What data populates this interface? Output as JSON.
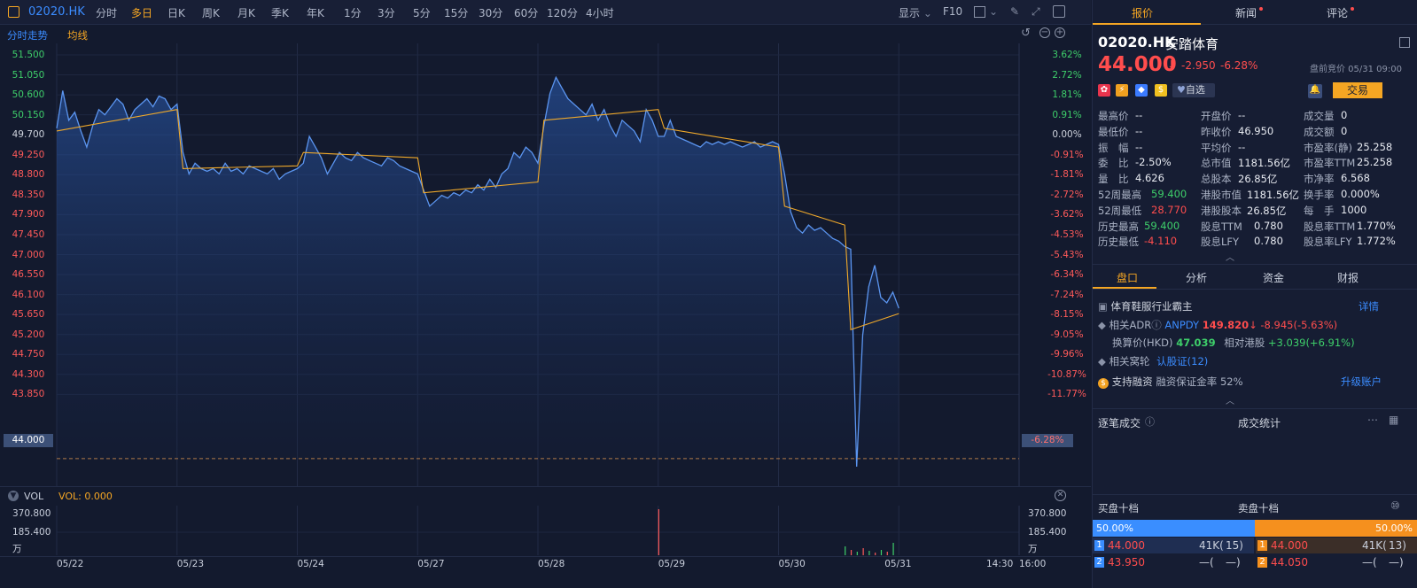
{
  "toolbar": {
    "symbol": "02020.HK",
    "periods": [
      "分时",
      "多日",
      "日K",
      "周K",
      "月K",
      "季K",
      "年K",
      "1分",
      "3分",
      "5分",
      "15分",
      "30分",
      "60分",
      "120分",
      "4小时"
    ],
    "active_period": "多日",
    "display_label": "显示",
    "f10_label": "F10"
  },
  "chart": {
    "tab_label": "分时走势",
    "ma_label": "均线",
    "price_axis": [
      "51.500",
      "51.050",
      "50.600",
      "50.150",
      "49.700",
      "49.250",
      "48.800",
      "48.350",
      "47.900",
      "47.450",
      "47.000",
      "46.550",
      "46.100",
      "45.650",
      "45.200",
      "44.750",
      "44.300",
      "43.850"
    ],
    "pct_axis": [
      "3.62%",
      "2.72%",
      "1.81%",
      "0.91%",
      "0.00%",
      "-0.91%",
      "-1.81%",
      "-2.72%",
      "-3.62%",
      "-4.53%",
      "-5.43%",
      "-6.34%",
      "-7.24%",
      "-8.15%",
      "-9.05%",
      "-9.96%",
      "-10.87%",
      "-11.77%"
    ],
    "current_price_tag": "44.000",
    "current_pct_tag": "-6.28%",
    "dates": [
      "05/22",
      "05/23",
      "05/24",
      "05/27",
      "05/28",
      "05/29",
      "05/30",
      "05/31"
    ],
    "time_labels": [
      "14:30",
      "16:00"
    ],
    "vol_label": "VOL",
    "vol_value": "VOL: 0.000",
    "vol_axis": [
      "370.800",
      "185.400",
      "万"
    ],
    "colors": {
      "price_line": "#5b95f0",
      "avg_line": "#f0a92a",
      "up": "#ff5a5a",
      "down": "#3ecf6a",
      "accent": "#f5a623"
    }
  },
  "chart_data": {
    "type": "line",
    "title": "",
    "ylim": [
      43.85,
      51.5
    ],
    "prev_close": 46.95,
    "series": [
      {
        "name": "",
        "x": [
          0,
          1,
          2,
          3,
          4,
          5,
          6,
          7,
          8,
          9,
          10,
          11,
          12,
          13,
          14,
          15,
          16,
          17,
          18,
          19,
          20,
          21,
          22,
          23,
          24,
          25,
          26,
          27,
          28,
          29,
          30,
          31,
          32,
          33,
          34,
          35,
          36,
          37,
          38,
          39,
          40,
          41,
          42,
          43,
          44,
          45,
          46,
          47,
          48,
          49,
          50,
          51,
          52,
          53,
          54,
          55,
          56,
          57,
          58,
          59,
          60,
          61,
          62,
          63,
          64,
          65,
          66,
          67,
          68,
          69,
          70,
          71,
          72,
          73,
          74,
          75,
          76,
          77,
          78,
          79,
          80,
          81,
          82,
          83,
          84,
          85,
          86,
          87,
          88,
          89,
          90,
          91,
          92,
          93,
          94,
          95,
          96,
          97,
          98,
          99,
          100,
          101,
          102,
          103,
          104,
          105,
          106,
          107,
          108,
          109,
          110,
          111,
          112,
          113,
          114,
          115,
          116,
          117,
          118,
          119,
          120,
          121,
          122,
          123,
          124,
          125,
          126,
          127,
          128,
          129,
          130,
          131,
          132,
          133,
          134,
          135,
          136,
          137,
          138,
          139,
          140
        ],
        "values": [
          50.15,
          50.85,
          50.3,
          50.45,
          50.1,
          49.8,
          50.2,
          50.5,
          50.4,
          50.55,
          50.7,
          50.6,
          50.3,
          50.5,
          50.6,
          50.7,
          50.55,
          50.75,
          50.7,
          50.5,
          50.6,
          49.7,
          49.3,
          49.5,
          49.4,
          49.35,
          49.4,
          49.3,
          49.5,
          49.35,
          49.4,
          49.3,
          49.45,
          49.4,
          49.35,
          49.3,
          49.4,
          49.2,
          49.3,
          49.35,
          49.4,
          49.5,
          50.0,
          49.8,
          49.6,
          49.3,
          49.5,
          49.7,
          49.6,
          49.55,
          49.7,
          49.6,
          49.55,
          49.5,
          49.45,
          49.6,
          49.55,
          49.45,
          49.4,
          49.35,
          49.3,
          49.0,
          48.7,
          48.8,
          48.9,
          48.85,
          48.95,
          48.9,
          49.0,
          48.95,
          49.1,
          49.0,
          49.2,
          49.05,
          49.3,
          49.4,
          49.7,
          49.6,
          49.8,
          49.7,
          49.5,
          50.2,
          50.8,
          51.1,
          50.9,
          50.7,
          50.6,
          50.5,
          50.4,
          50.6,
          50.3,
          50.5,
          50.2,
          50.0,
          50.3,
          50.2,
          50.1,
          49.9,
          50.5,
          50.3,
          50.0,
          50.0,
          50.3,
          50.0,
          49.95,
          49.9,
          49.85,
          49.8,
          49.9,
          49.85,
          49.9,
          49.85,
          49.9,
          49.85,
          49.8,
          49.85,
          49.9,
          49.8,
          49.85,
          49.9,
          49.85,
          49.3,
          48.6,
          48.3,
          48.2,
          48.35,
          48.25,
          48.3,
          48.2,
          48.1,
          48.05,
          47.95,
          47.9,
          43.85,
          46.3,
          47.2,
          47.6,
          47.0,
          46.9,
          47.1,
          46.8
        ],
        "style": "price"
      },
      {
        "name": "",
        "x": [
          0,
          20,
          21,
          40,
          41,
          60,
          61,
          80,
          81,
          100,
          101,
          120,
          121,
          131,
          132,
          140
        ],
        "values": [
          50.1,
          50.5,
          49.4,
          49.45,
          49.7,
          49.6,
          48.95,
          49.15,
          50.3,
          50.5,
          50.15,
          49.8,
          48.7,
          48.35,
          46.4,
          46.7
        ],
        "style": "avg"
      }
    ],
    "ylabel": "",
    "xlabel": "",
    "categories": [
      "05/22",
      "05/23",
      "05/24",
      "05/27",
      "05/28",
      "05/29",
      "05/30",
      "05/31"
    ],
    "volume": {
      "max": 370.8,
      "spike_index": 100,
      "spike_value": 370.8
    }
  },
  "right": {
    "tabs": [
      "报价",
      "新闻",
      "评论"
    ],
    "code": "02020.HK",
    "name": "安踏体育",
    "price": "44.000",
    "arrow": "⬇",
    "change": "-2.950",
    "change_pct": "-6.28%",
    "pre_market": "盘前竞价 05/31 09:00",
    "watch_label": "自选",
    "trade_label": "交易",
    "stats": [
      [
        "最高价",
        "--",
        "开盘价",
        "--",
        "成交量",
        "0"
      ],
      [
        "最低价",
        "--",
        "昨收价",
        "46.950",
        "成交额",
        "0"
      ],
      [
        "振　幅",
        "--",
        "平均价",
        "--",
        "市盈率(静)",
        "25.258"
      ],
      [
        "委　比",
        "-2.50%",
        "总市值",
        "1181.56亿",
        "市盈率TTM",
        "25.258"
      ],
      [
        "量　比",
        "4.626",
        "总股本",
        "26.85亿",
        "市净率",
        "6.568"
      ],
      [
        "52周最高",
        "59.400",
        "港股市值",
        "1181.56亿",
        "换手率",
        "0.000%"
      ],
      [
        "52周最低",
        "28.770",
        "港股股本",
        "26.85亿",
        "每　手",
        "1000"
      ],
      [
        "历史最高",
        "59.400",
        "股息TTM",
        "0.780",
        "股息率TTM",
        "1.770%"
      ],
      [
        "历史最低",
        "-4.110",
        "股息LFY",
        "0.780",
        "股息率LFY",
        "1.772%"
      ]
    ],
    "subtabs": [
      "盘口",
      "分析",
      "资金",
      "财报"
    ],
    "industry": "体育鞋服行业霸主",
    "detail_label": "详情",
    "adr_label": "相关ADR",
    "adr_code": "ANPDY",
    "adr_price": "149.820",
    "adr_change": "-8.945(-5.63%)",
    "conv_label": "换算价(HKD)",
    "conv_price": "47.039",
    "rel_label": "相对港股",
    "rel_value": "+3.039(+6.91%)",
    "warrant_label": "相关窝轮",
    "warrant_value": "认股证(12)",
    "margin_label": "支持融资",
    "margin_text": "融资保证金率 52%",
    "upgrade_label": "升级账户",
    "trades_label": "逐笔成交",
    "trade_stats_label": "成交统计",
    "buy_label": "买盘十档",
    "sell_label": "卖盘十档",
    "buy_pct": "50.00%",
    "sell_pct": "50.00%",
    "bids": [
      [
        "1",
        "44.000",
        "41K(",
        "15)"
      ],
      [
        "2",
        "43.950",
        "—(",
        "—)"
      ]
    ],
    "asks": [
      [
        "1",
        "44.000",
        "41K(",
        "13)"
      ],
      [
        "2",
        "44.050",
        "—(",
        "—)"
      ]
    ]
  }
}
